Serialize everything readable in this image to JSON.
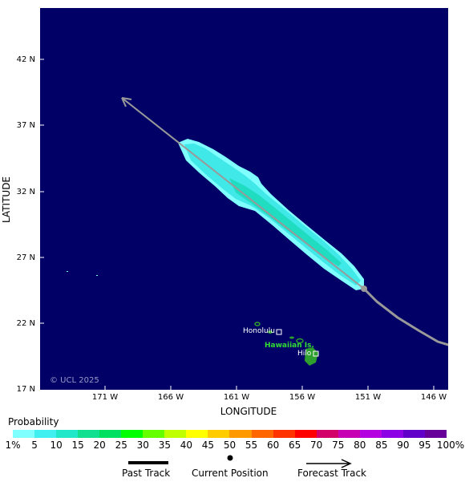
{
  "map": {
    "copyright": "© UCL 2025",
    "ocean_color": "#000066",
    "land_color": "#2e9e2e",
    "track_color": "#999999",
    "y_axis_label": "LATITUDE",
    "x_axis_label": "LONGITUDE",
    "lat_ticks": [
      "42 N",
      "37 N",
      "32 N",
      "27 N",
      "22 N",
      "17 N"
    ],
    "lon_ticks": [
      "171 W",
      "166 W",
      "161 W",
      "156 W",
      "151 W",
      "146 W"
    ],
    "place_labels": {
      "honolulu": "Honolulu",
      "hilo": "Hilo",
      "islands": "Hawaiian Is."
    }
  },
  "legend": {
    "title": "Probability",
    "levels": [
      "1%",
      "5",
      "10",
      "15",
      "20",
      "25",
      "30",
      "35",
      "40",
      "45",
      "50",
      "55",
      "60",
      "65",
      "70",
      "75",
      "80",
      "85",
      "90",
      "95",
      "100%"
    ],
    "colors": [
      "#80ffff",
      "#40f0f0",
      "#20e8c8",
      "#10e090",
      "#00e060",
      "#00ff00",
      "#66ff00",
      "#c0ff00",
      "#ffff00",
      "#ffcc00",
      "#ff9900",
      "#ff6600",
      "#ff3300",
      "#ff0000",
      "#d4006a",
      "#c800b4",
      "#b400e0",
      "#8c00e6",
      "#6000c8",
      "#660099"
    ],
    "past_track": "Past Track",
    "current_position": "Current Position",
    "forecast_track": "Forecast Track"
  }
}
